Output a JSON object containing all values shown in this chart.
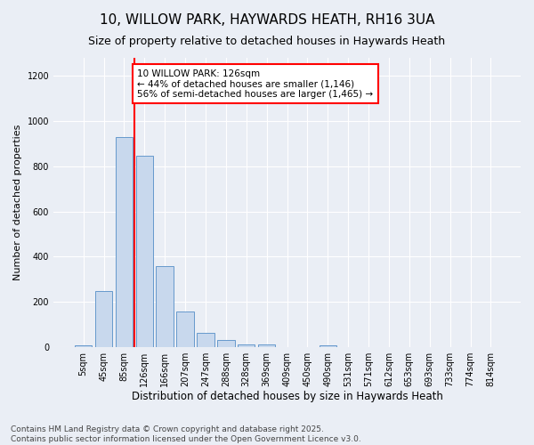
{
  "title": "10, WILLOW PARK, HAYWARDS HEATH, RH16 3UA",
  "subtitle": "Size of property relative to detached houses in Haywards Heath",
  "xlabel": "Distribution of detached houses by size in Haywards Heath",
  "ylabel": "Number of detached properties",
  "categories": [
    "5sqm",
    "45sqm",
    "85sqm",
    "126sqm",
    "166sqm",
    "207sqm",
    "247sqm",
    "288sqm",
    "328sqm",
    "369sqm",
    "409sqm",
    "450sqm",
    "490sqm",
    "531sqm",
    "571sqm",
    "612sqm",
    "653sqm",
    "693sqm",
    "733sqm",
    "774sqm",
    "814sqm"
  ],
  "values": [
    5,
    248,
    928,
    845,
    358,
    158,
    63,
    30,
    10,
    10,
    0,
    0,
    8,
    0,
    0,
    0,
    0,
    0,
    0,
    0,
    0
  ],
  "bar_color": "#c8d8ed",
  "bar_edge_color": "#6699cc",
  "vline_color": "red",
  "vline_position": 2.5,
  "annotation_text": "10 WILLOW PARK: 126sqm\n← 44% of detached houses are smaller (1,146)\n56% of semi-detached houses are larger (1,465) →",
  "annotation_box_color": "white",
  "annotation_box_edge_color": "red",
  "ylim": [
    0,
    1280
  ],
  "yticks": [
    0,
    200,
    400,
    600,
    800,
    1000,
    1200
  ],
  "background_color": "#eaeef5",
  "grid_color": "white",
  "footer": "Contains HM Land Registry data © Crown copyright and database right 2025.\nContains public sector information licensed under the Open Government Licence v3.0.",
  "title_fontsize": 11,
  "subtitle_fontsize": 9,
  "xlabel_fontsize": 8.5,
  "ylabel_fontsize": 8,
  "tick_fontsize": 7,
  "annotation_fontsize": 7.5,
  "footer_fontsize": 6.5
}
